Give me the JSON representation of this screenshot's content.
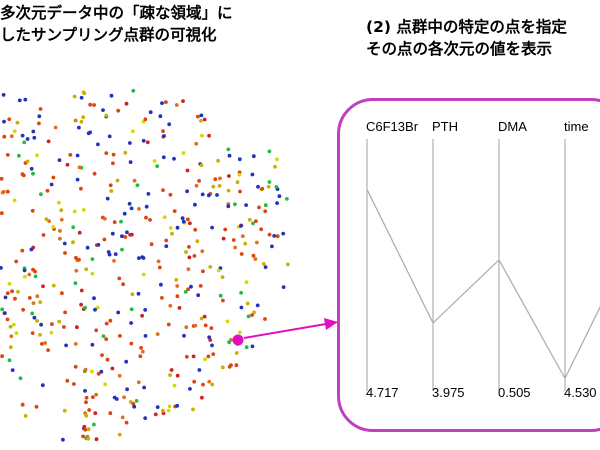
{
  "captions": {
    "left": [
      "多次元データ中の「疎な領域」に",
      "したサンプリング点群の可視化"
    ],
    "right": [
      "(2) 点群中の特定の点を指定",
      "その点の各次元の値を表示"
    ]
  },
  "colors": {
    "frame": "#c040c0",
    "highlight": "#e010c0",
    "pcp_line": "#b0b0b0",
    "axis": "#a0a0a0",
    "dot_palette": [
      "#2233bb",
      "#dd4411",
      "#cc2222",
      "#e07020",
      "#c8b000",
      "#d8d800",
      "#22bb44"
    ]
  },
  "parallel_coordinates": {
    "axes": [
      {
        "name": "C6F13Br",
        "value": "4.717",
        "level": 0.8
      },
      {
        "name": "PTH",
        "value": "3.975",
        "level": 0.27
      },
      {
        "name": "DMA",
        "value": "0.505",
        "level": 0.52
      },
      {
        "name": "time",
        "value": "4.530",
        "level": 0.05
      }
    ],
    "next_level": 0.55
  }
}
